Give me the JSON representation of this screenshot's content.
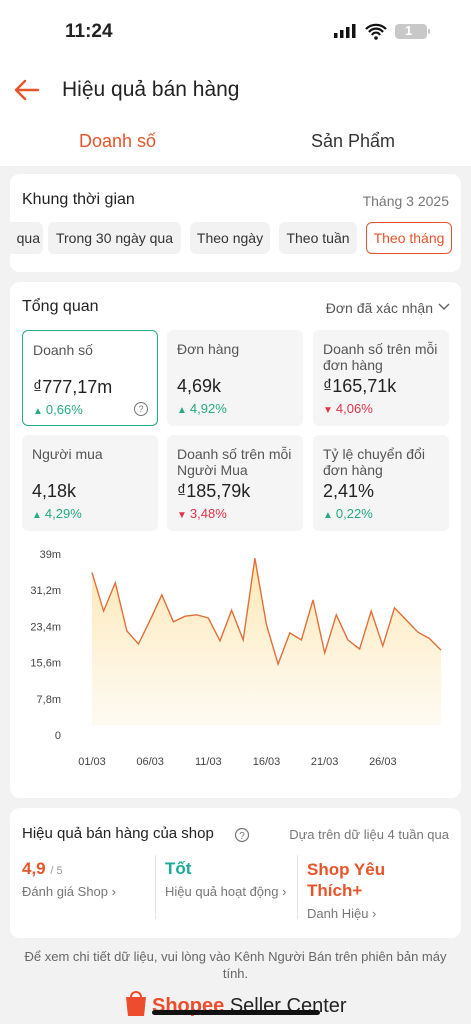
{
  "status_bar": {
    "time": "11:24",
    "battery": "1"
  },
  "header": {
    "title": "Hiệu quả bán hàng"
  },
  "tabs": [
    "Doanh số",
    "Sản Phẩm"
  ],
  "time_filter": {
    "title": "Khung thời gian",
    "period": "Tháng 3 2025",
    "options": [
      "qua",
      "Trong 30 ngày qua",
      "Theo ngày",
      "Theo tuần",
      "Theo tháng"
    ]
  },
  "overview": {
    "title": "Tổng quan",
    "filter": "Đơn đã xác nhận",
    "metrics": [
      {
        "label": "Doanh số",
        "value": "₫777,17m",
        "change": "0,66%",
        "direction": "up"
      },
      {
        "label": "Đơn hàng",
        "value": "4,69k",
        "change": "4,92%",
        "direction": "up"
      },
      {
        "label": "Doanh số trên mỗi đơn hàng",
        "value": "₫165,71k",
        "change": "4,06%",
        "direction": "down"
      },
      {
        "label": "Người mua",
        "value": "4,18k",
        "change": "4,29%",
        "direction": "up"
      },
      {
        "label": "Doanh số trên mỗi Người Mua",
        "value": "₫185,79k",
        "change": "3,48%",
        "direction": "down"
      },
      {
        "label": "Tỷ lệ chuyển đổi đơn hàng",
        "value": "2,41%",
        "change": "0,22%",
        "direction": "up"
      }
    ]
  },
  "chart_data": {
    "type": "line",
    "categories": [
      "01/03",
      null,
      null,
      null,
      null,
      "06/03",
      null,
      null,
      null,
      null,
      "11/03",
      null,
      null,
      null,
      null,
      "16/03",
      null,
      null,
      null,
      null,
      "21/03",
      null,
      null,
      null,
      null,
      "26/03",
      null,
      null,
      null,
      null,
      null
    ],
    "values": [
      35,
      26.7,
      32.8,
      22.4,
      19.6,
      24.8,
      30.2,
      24.4,
      25.6,
      25.9,
      25.2,
      20.3,
      26.9,
      20.5,
      38.1,
      23.7,
      15.3,
      22,
      20.5,
      29.1,
      17.7,
      25.9,
      20.5,
      18.5,
      26.7,
      19.2,
      27.4,
      24.8,
      22.2,
      20.8,
      18.3
    ],
    "color": "#e0703a",
    "ylim": [
      0,
      39
    ],
    "yticks": [
      0,
      {
        "value": 7.8,
        "label": "7,8m"
      },
      {
        "value": 15.6,
        "label": "15,6m"
      },
      {
        "value": 23.4,
        "label": "23,4m"
      },
      {
        "value": 31.2,
        "label": "31,2m"
      },
      {
        "value": 39,
        "label": "39m"
      }
    ],
    "area": true
  },
  "shop_performance": {
    "title": "Hiệu quả bán hàng của shop",
    "note": "Dựa trên dữ liệu 4 tuần qua",
    "items": [
      {
        "value": "4,9",
        "suffix": "/ 5",
        "label": "Đánh giá Shop"
      },
      {
        "value": "Tốt",
        "label": "Hiệu quả hoạt động"
      },
      {
        "value": "Shop Yêu Thích+",
        "label": "Danh Hiệu"
      }
    ]
  },
  "footer": {
    "note": "Để xem chi tiết dữ liệu, vui lòng vào Kênh Người Bán trên phiên bản máy tính.",
    "brand": "Shopee",
    "product": "Seller Center"
  }
}
